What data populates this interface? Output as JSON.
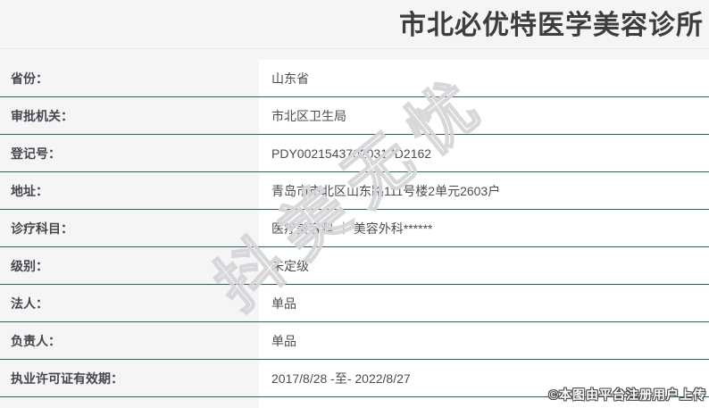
{
  "header": {
    "title": "市北必优特医学美容诊所"
  },
  "table": {
    "rows": [
      {
        "label": "省份：",
        "value": "山东省"
      },
      {
        "label": "审批机关：",
        "value": "市北区卫生局"
      },
      {
        "label": "登记号：",
        "value": "PDY00215437020317D2162"
      },
      {
        "label": "地址：",
        "value": "青岛市市北区山东路111号楼2单元2603户"
      },
      {
        "label": "诊疗科目：",
        "value": "医疗美容科 ｜ 美容外科******"
      },
      {
        "label": "级别：",
        "value": "未定级"
      },
      {
        "label": "法人：",
        "value": "单品"
      },
      {
        "label": "负责人：",
        "value": "单品"
      },
      {
        "label": "执业许可证有效期：",
        "value": "2017/8/28 -至- 2022/8/27"
      }
    ]
  },
  "watermark": {
    "text": "抖美无忧"
  },
  "footer": {
    "stamp": "©本图由平台注册用户上传"
  },
  "colors": {
    "row_border": "#25655a",
    "panel_bg": "#f5f5f6",
    "label_color": "#45454d",
    "value_color": "#4c4c54",
    "title_color": "#3d3d3f"
  }
}
